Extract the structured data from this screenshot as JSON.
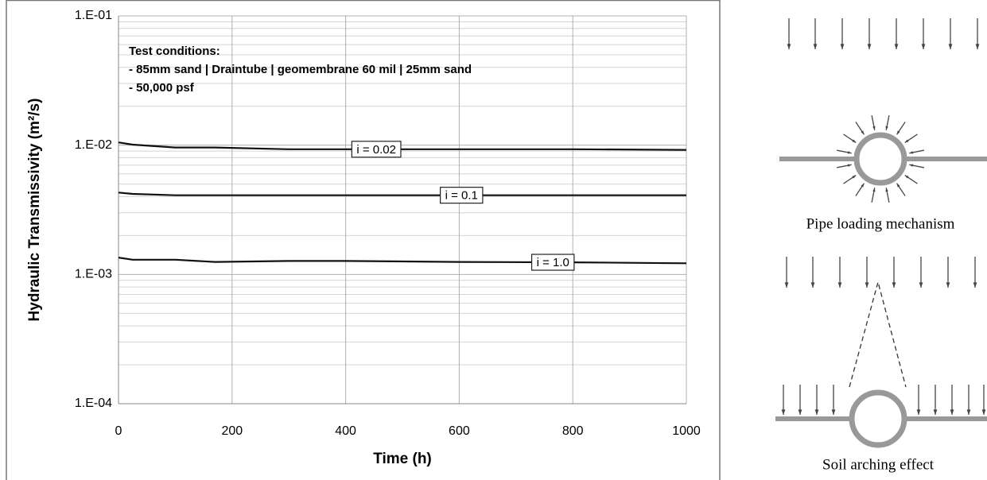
{
  "chart_data": {
    "type": "line",
    "x_label": "Time (h)",
    "y_label": "Hydraulic Transmissivity (m²/s)",
    "annotations": [
      "Test conditions:",
      "- 85mm sand | Draintube | geomembrane 60 mil | 25mm sand",
      "- 50,000 psf"
    ],
    "x": [
      0,
      25,
      100,
      170,
      300,
      400,
      600,
      800,
      1000
    ],
    "series": [
      {
        "name": "i = 0.02",
        "color": "#111111",
        "values": [
          0.0105,
          0.0101,
          0.0096,
          0.0096,
          0.0093,
          0.0093,
          0.0093,
          0.0093,
          0.0092
        ]
      },
      {
        "name": "i = 0.1",
        "color": "#111111",
        "values": [
          0.0043,
          0.0042,
          0.0041,
          0.0041,
          0.0041,
          0.0041,
          0.0041,
          0.0041,
          0.0041
        ]
      },
      {
        "name": "i = 1.0",
        "color": "#111111",
        "values": [
          0.00135,
          0.0013,
          0.0013,
          0.00125,
          0.00127,
          0.00127,
          0.00125,
          0.00124,
          0.00122
        ]
      }
    ],
    "xlim": [
      0,
      1000
    ],
    "xticks": [
      0,
      200,
      400,
      600,
      800,
      1000
    ],
    "ylim": [
      0.0001,
      0.1
    ],
    "yticks": [
      {
        "value": 0.0001,
        "label": "1.E-04"
      },
      {
        "value": 0.001,
        "label": "1.E-03"
      },
      {
        "value": 0.01,
        "label": "1.E-02"
      },
      {
        "value": 0.1,
        "label": "1.E-01"
      }
    ],
    "log_y": true,
    "grid": true
  },
  "diagram": {
    "captions": [
      "Pipe loading mechanism",
      "Soil arching effect"
    ]
  }
}
